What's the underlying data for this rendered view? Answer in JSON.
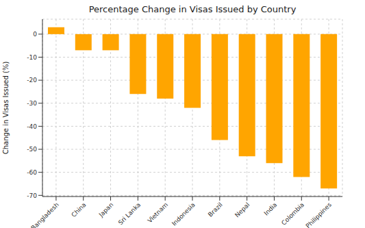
{
  "chart_data": {
    "type": "bar",
    "title": "Percentage Change in Visas Issued by Country",
    "y_label": "Change in Visas Issued (%)",
    "categories": [
      "Bangladesh",
      "China",
      "Japan",
      "Sri Lanka",
      "Vietnam",
      "Indonesia",
      "Brazil",
      "Nepal",
      "India",
      "Colombia",
      "Philippines"
    ],
    "values": [
      3,
      -7,
      -7,
      -26,
      -28,
      -32,
      -46,
      -53,
      -56,
      -62,
      -67
    ],
    "color": "#FFA500",
    "ylim": [
      -70.5,
      6.5
    ],
    "yticks": [
      -70,
      -60,
      -50,
      -40,
      -30,
      -20,
      -10,
      0
    ],
    "grid": true
  }
}
